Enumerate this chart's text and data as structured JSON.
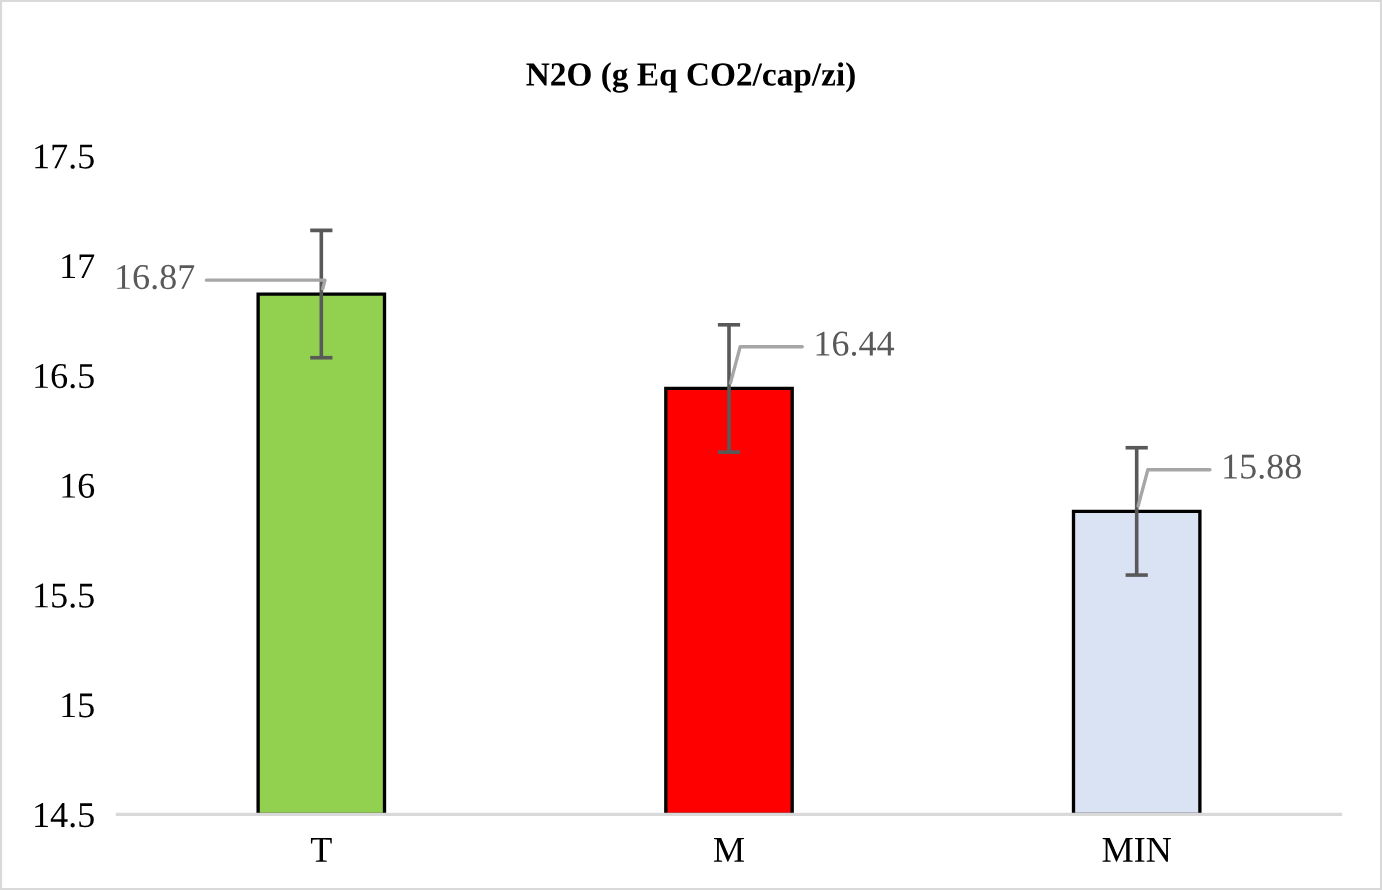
{
  "chart_data": {
    "type": "bar",
    "title": "N2O (g Eq CO2/cap/zi)",
    "categories": [
      "T",
      "M",
      "MIN"
    ],
    "values": [
      16.87,
      16.44,
      15.88
    ],
    "colors": [
      "#92d050",
      "#ff0000",
      "#dae3f3"
    ],
    "errors": [
      0.29,
      0.29,
      0.29
    ],
    "ylim": [
      14.5,
      17.5
    ],
    "yticks": [
      14.5,
      15,
      15.5,
      16,
      16.5,
      17,
      17.5
    ],
    "grid": false,
    "data_labels": true
  }
}
